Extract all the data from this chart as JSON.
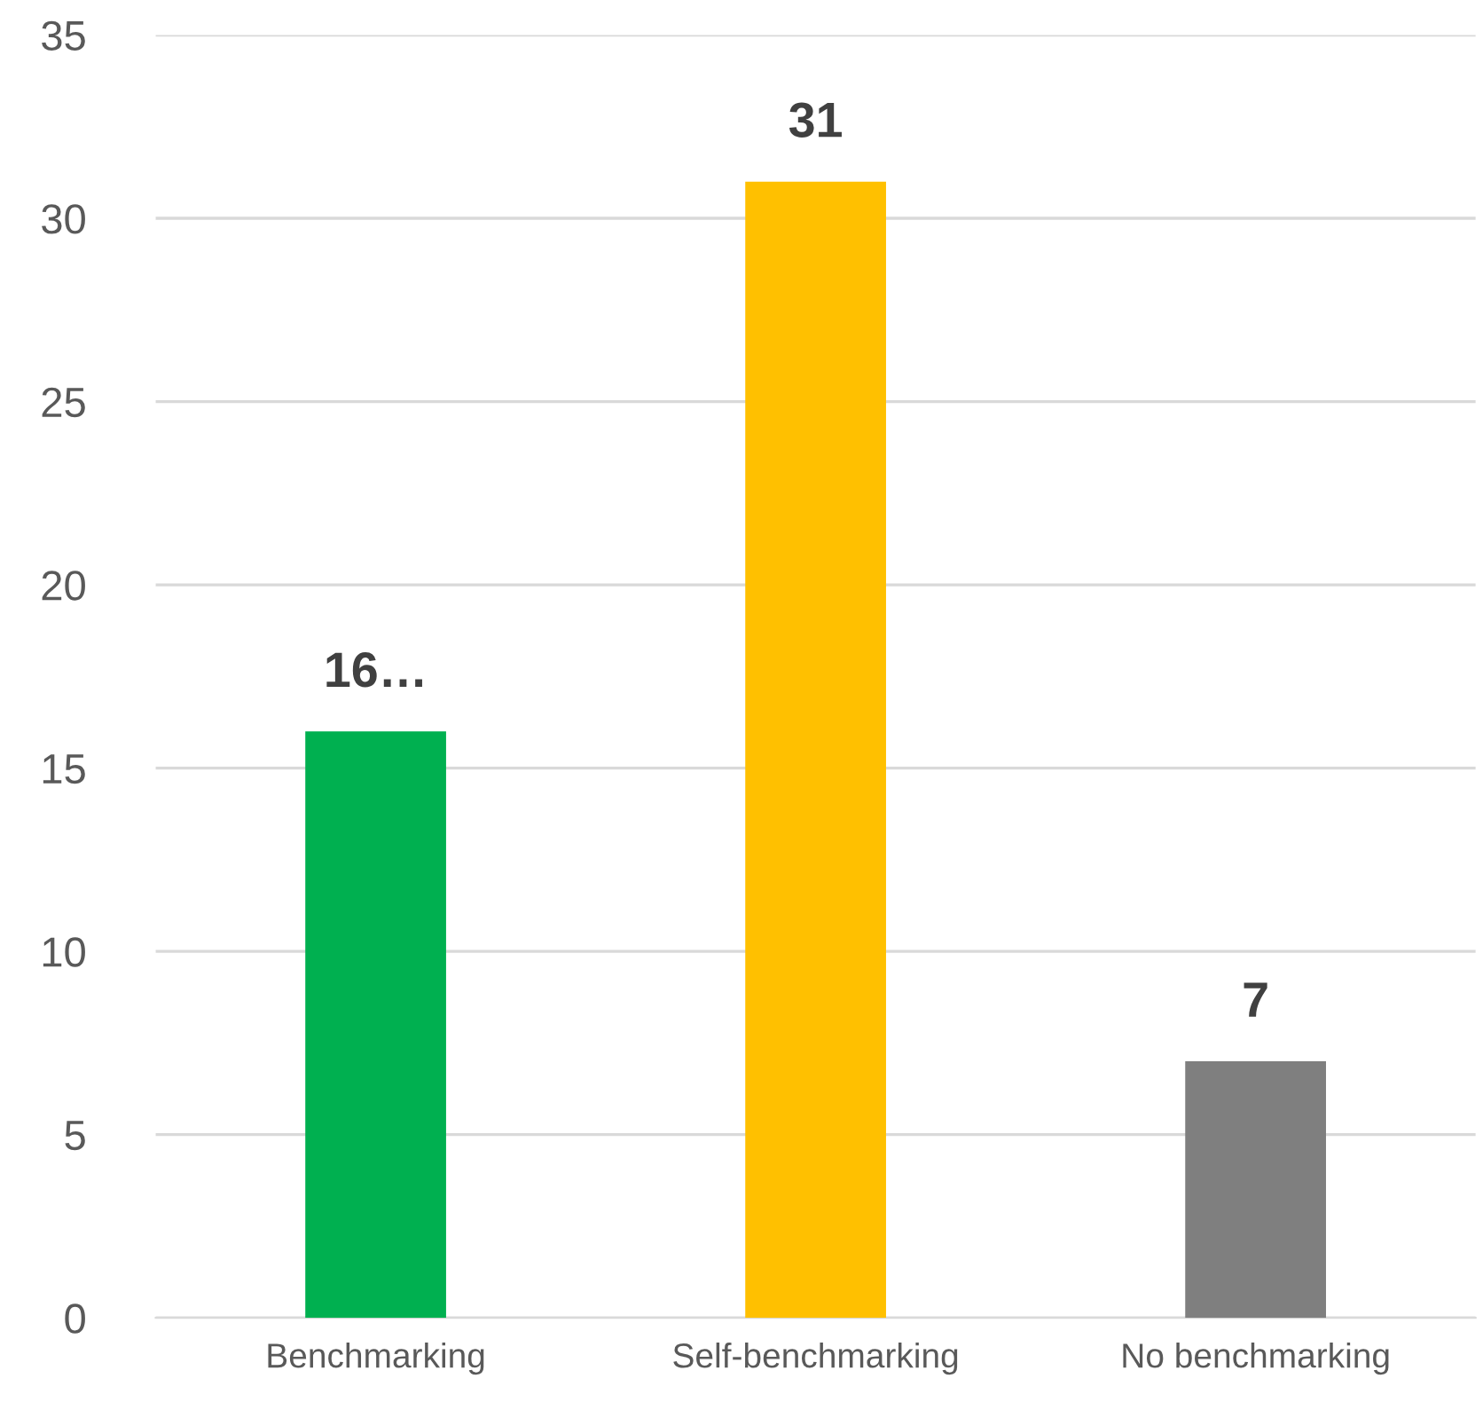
{
  "chart_data": {
    "type": "bar",
    "categories": [
      "Benchmarking",
      "Self-benchmarking",
      "No benchmarking"
    ],
    "values": [
      16,
      31,
      7
    ],
    "colors": [
      "#00b050",
      "#ffc000",
      "#7f7f7f"
    ],
    "value_labels": [
      "16…",
      "31",
      "7"
    ],
    "ylim": [
      0,
      35
    ],
    "yticks": [
      0,
      5,
      10,
      15,
      20,
      25,
      30,
      35
    ],
    "grid": "y",
    "legend": false
  }
}
